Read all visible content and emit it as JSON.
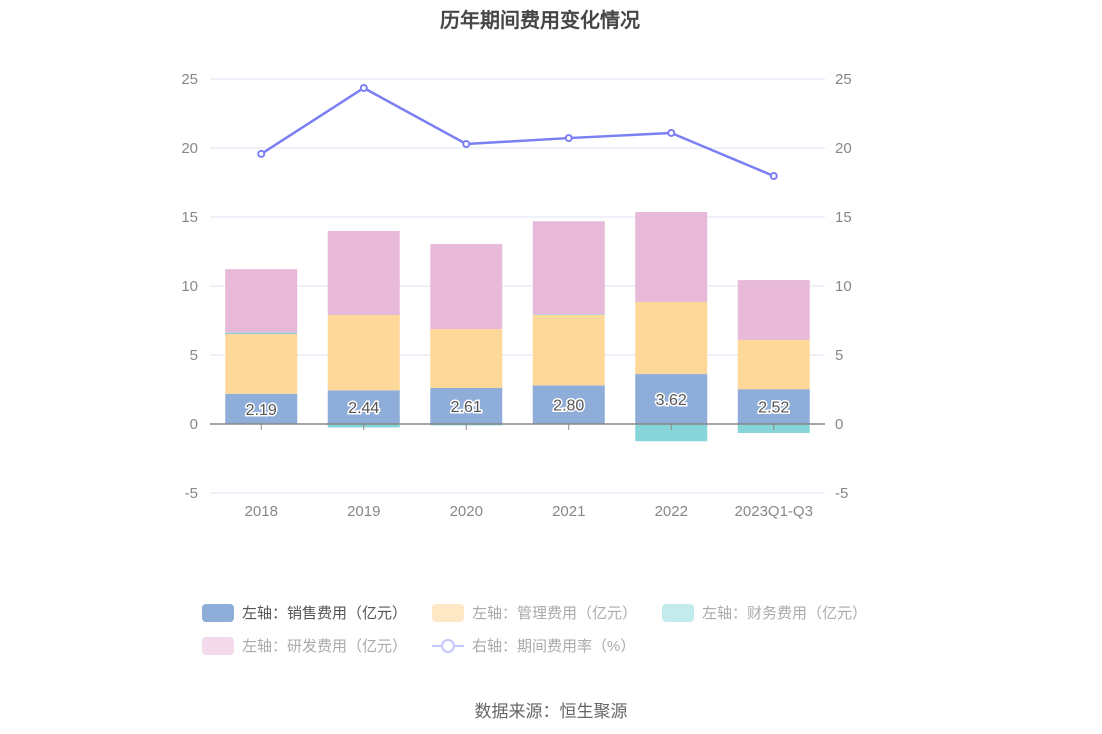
{
  "chart_data": {
    "type": "bar",
    "title": "历年期间费用变化情况",
    "categories": [
      "2018",
      "2019",
      "2020",
      "2021",
      "2022",
      "2023Q1-Q3"
    ],
    "left_axis": {
      "ylim": [
        -5,
        25
      ],
      "ticks": [
        -5,
        0,
        5,
        10,
        15,
        20,
        25
      ]
    },
    "right_axis": {
      "ylim": [
        -5,
        25
      ],
      "ticks": [
        -5,
        0,
        5,
        10,
        15,
        20,
        25
      ]
    },
    "series": [
      {
        "name": "左轴：销售费用（亿元）",
        "type": "bar",
        "axis": "left",
        "color": "#8eadd9",
        "values": [
          2.19,
          2.44,
          2.61,
          2.8,
          3.62,
          2.52
        ],
        "labels": [
          "2.19",
          "2.44",
          "2.61",
          "2.80",
          "3.62",
          "2.52"
        ]
      },
      {
        "name": "左轴：管理费用（亿元）",
        "type": "bar",
        "axis": "left",
        "color": "#fdd899",
        "values": [
          4.33,
          5.46,
          4.27,
          5.1,
          5.22,
          3.57
        ]
      },
      {
        "name": "左轴：财务费用（亿元）",
        "type": "bar",
        "axis": "left",
        "color": "#86d5d8",
        "values": [
          0.1,
          -0.25,
          -0.1,
          0.05,
          -1.25,
          -0.65
        ]
      },
      {
        "name": "左轴：研发费用（亿元）",
        "type": "bar",
        "axis": "left",
        "color": "#e8b9d9",
        "values": [
          4.6,
          6.09,
          6.16,
          6.74,
          6.52,
          4.34
        ]
      },
      {
        "name": "右轴：期间费用率（%）",
        "type": "line",
        "axis": "right",
        "color": "#7b7ff4",
        "values": [
          19.57,
          24.35,
          20.29,
          20.72,
          21.09,
          17.97
        ]
      }
    ],
    "legend_position": "bottom",
    "grid": true
  },
  "legend_swatch_colors": [
    "#8eadd9",
    "#fde7c4",
    "#c3ebec",
    "#f3dbec",
    "#c5c7fa"
  ],
  "source": "数据来源：恒生聚源"
}
